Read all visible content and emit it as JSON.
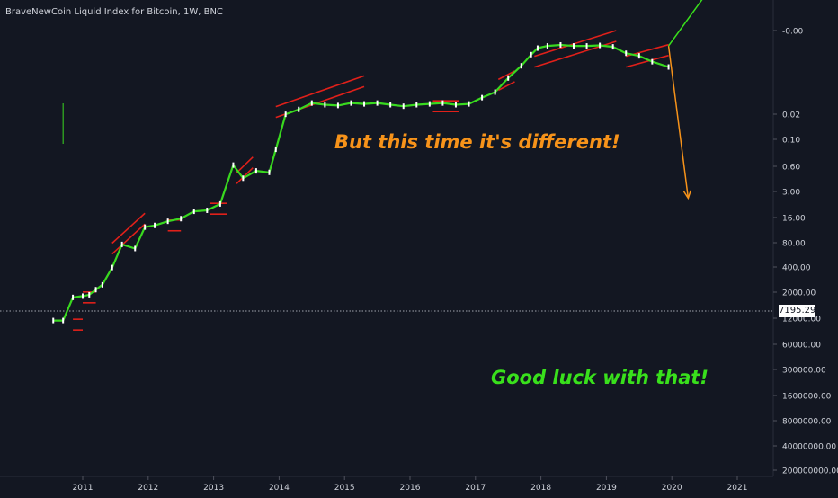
{
  "header": {
    "title": "BraveNewCoin Liquid Index for Bitcoin, 1W, BNC"
  },
  "annotations": {
    "top": "But this time it's different!",
    "bottom": "Good luck with that!"
  },
  "price_tag": {
    "value": "7195.29"
  },
  "colors": {
    "background": "#131722",
    "axis_text": "#d1d4dc",
    "trend_up": "#39d91f",
    "channel": "#e0201a",
    "annotation_top": "#f7931a",
    "annotation_bottom": "#39e01c",
    "arrow_up": "#f7931a",
    "arrow_down": "#39e01c"
  },
  "chart_data": {
    "type": "line",
    "title": "BraveNewCoin Liquid Index for Bitcoin, 1W, BNC",
    "y_scale": "inverted-log",
    "x_ticks": [
      "2011",
      "2012",
      "2013",
      "2014",
      "2015",
      "2016",
      "2017",
      "2018",
      "2019",
      "2020",
      "2021"
    ],
    "y_ticks": [
      "-0.00",
      "0.02",
      "0.10",
      "0.60",
      "3.00",
      "16.00",
      "80.00",
      "400.00",
      "2000.00",
      "12000.00",
      "60000.00",
      "300000.00",
      "1600000.00",
      "8000000.00",
      "40000000.00",
      "200000000.00"
    ],
    "last_price": 7195.29,
    "series": [
      {
        "x": [
          2010.55,
          2010.7,
          2010.85,
          2011.0,
          2011.1,
          2011.2,
          2011.3,
          2011.45,
          2011.6,
          2011.8,
          2011.95,
          2012.1,
          2012.3,
          2012.5,
          2012.7,
          2012.9,
          2013.1,
          2013.3,
          2013.45,
          2013.65,
          2013.85,
          2013.95,
          2014.1,
          2014.3,
          2014.5,
          2014.7,
          2014.9,
          2015.1,
          2015.3,
          2015.5,
          2015.7,
          2015.9,
          2016.1,
          2016.3,
          2016.5,
          2016.7,
          2016.9,
          2017.1,
          2017.3,
          2017.5,
          2017.7,
          2017.85,
          2017.95,
          2018.1,
          2018.3,
          2018.5,
          2018.7,
          2018.9,
          2019.1,
          2019.3,
          2019.5,
          2019.7,
          2019.95
        ],
        "y": [
          6000,
          6000,
          1200,
          1100,
          1000,
          700,
          500,
          150,
          30,
          40,
          9,
          8,
          6,
          5,
          3,
          2.8,
          1.8,
          0.12,
          0.3,
          0.18,
          0.2,
          0.04,
          0.0035,
          0.0025,
          0.0016,
          0.0018,
          0.0019,
          0.0016,
          0.0017,
          0.0016,
          0.0018,
          0.002,
          0.0018,
          0.0017,
          0.0016,
          0.0018,
          0.0017,
          0.0011,
          0.00075,
          0.00028,
          0.00012,
          5.5e-05,
          3.5e-05,
          3e-05,
          2.8e-05,
          3e-05,
          3e-05,
          2.9e-05,
          3.2e-05,
          5e-05,
          6e-05,
          9e-05,
          0.00013
        ]
      }
    ],
    "channels": [
      {
        "x0": 2010.85,
        "x1": 2011.0,
        "y0": 8000,
        "y1": 8000
      },
      {
        "x0": 2011.0,
        "x1": 2011.2,
        "y0": 1200,
        "y1": 1200
      },
      {
        "x0": 2011.45,
        "x1": 2011.95,
        "y0": 40,
        "y1": 5
      },
      {
        "x0": 2012.3,
        "x1": 2012.5,
        "y0": 8,
        "y1": 8
      },
      {
        "x0": 2012.95,
        "x1": 2013.2,
        "y0": 2.5,
        "y1": 2.5
      },
      {
        "x0": 2013.35,
        "x1": 2013.6,
        "y0": 0.3,
        "y1": 0.1
      },
      {
        "x0": 2013.95,
        "x1": 2015.3,
        "y0": 0.003,
        "y1": 0.00035
      },
      {
        "x0": 2016.35,
        "x1": 2016.75,
        "y0": 0.002,
        "y1": 0.002
      },
      {
        "x0": 2017.35,
        "x1": 2017.6,
        "y0": 0.00045,
        "y1": 0.00025
      },
      {
        "x0": 2017.9,
        "x1": 2019.15,
        "y0": 9e-05,
        "y1": 1.5e-05
      },
      {
        "x0": 2019.3,
        "x1": 2019.95,
        "y0": 9e-05,
        "y1": 4e-05
      }
    ],
    "arrow_up": {
      "x0": 2019.95,
      "x1": 2020.25,
      "y0": 3e-05,
      "y1": 1.2
    },
    "arrow_down": {
      "x0": 2019.95,
      "x1": 2020.6,
      "y0": 3e-05,
      "y1": 5e-07
    }
  }
}
